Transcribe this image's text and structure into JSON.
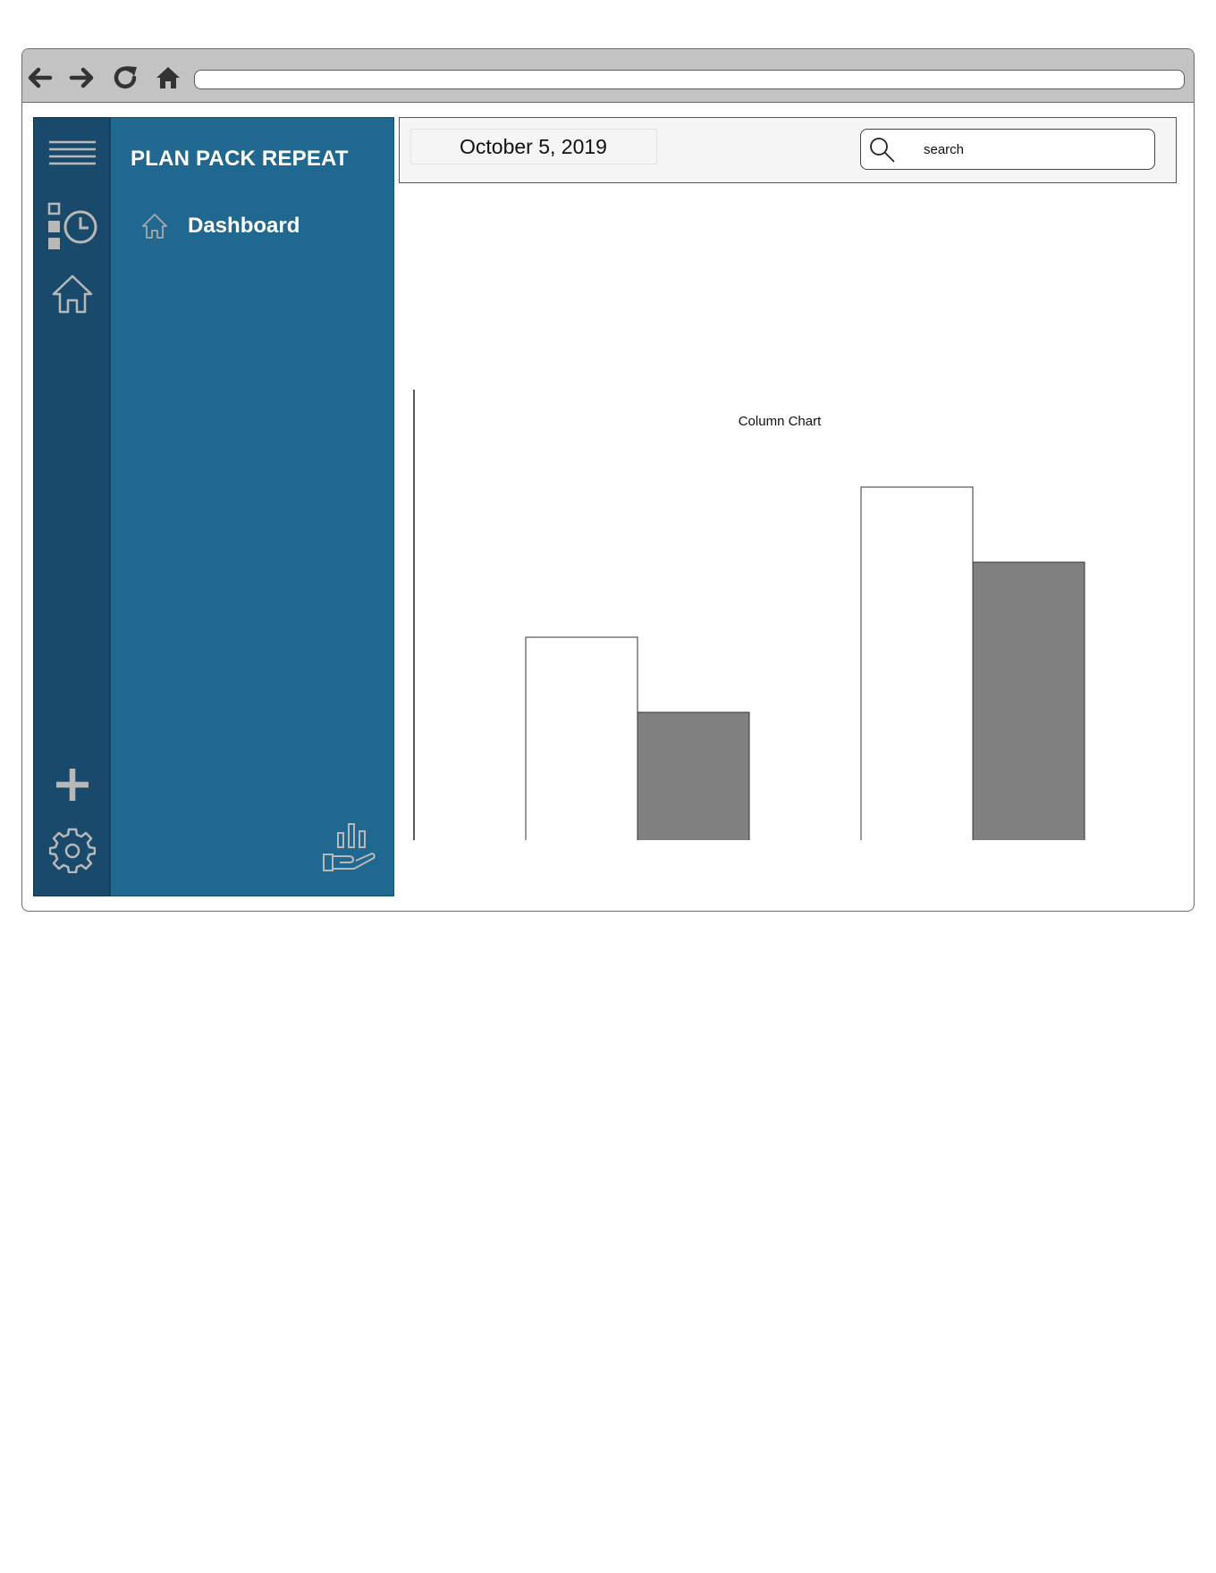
{
  "browser": {
    "icons": [
      "back-arrow-icon",
      "forward-arrow-icon",
      "reload-icon",
      "home-icon"
    ],
    "address": ""
  },
  "icon_rail": {
    "items": [
      "hamburger-menu-icon",
      "schedule-clock-icon",
      "home-icon",
      "plus-icon",
      "gear-icon"
    ],
    "color": "#1a4a6b"
  },
  "sidebar": {
    "brand": "PLAN PACK REPEAT",
    "nav_item_label": "Dashboard",
    "color": "#216891"
  },
  "header": {
    "date": "October 5, 2019",
    "search_placeholder": "search"
  },
  "chart_data": {
    "type": "bar",
    "title": "Column Chart",
    "categories": [
      "",
      ""
    ],
    "series": [
      {
        "values": [
          50,
          80
        ],
        "color": "#ffffff"
      },
      {
        "values": [
          35,
          65
        ],
        "color": "#808080"
      }
    ],
    "ylim": [
      0,
      100
    ],
    "grid": false,
    "legend": "none"
  }
}
